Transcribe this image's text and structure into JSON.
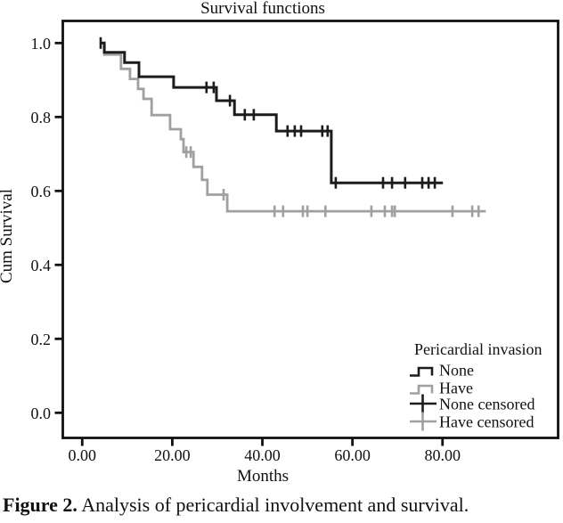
{
  "figure": {
    "caption_label": "Figure 2.",
    "caption_text": " Analysis of pericardial involvement and survival."
  },
  "chart_data": {
    "type": "line",
    "subtype": "kaplan-meier-step",
    "title": "Survival functions",
    "xlabel": "Months",
    "ylabel": "Cum Survival",
    "xlim": [
      0,
      80
    ],
    "ylim": [
      0.0,
      1.0
    ],
    "grid": false,
    "background": "#ffffff",
    "axis_color": "#111111",
    "xticks": {
      "values": [
        0,
        20,
        40,
        60,
        80
      ],
      "labels": [
        "0.00",
        "20.00",
        "40.00",
        "60.00",
        "80.00"
      ]
    },
    "yticks": {
      "values": [
        1.0,
        0.8,
        0.6,
        0.4,
        0.2,
        0.0
      ],
      "labels": [
        "1.0",
        "0.8",
        "0.6",
        "0.4",
        "0.2",
        "0.0"
      ]
    },
    "legend": {
      "title": "Pericardial invasion",
      "position": "lower right",
      "items": [
        "None",
        "Have",
        "None censored",
        "Have censored"
      ]
    },
    "series": [
      {
        "name": "Have",
        "color": "#a0a0a0",
        "steps": [
          [
            3.9,
            1.0
          ],
          [
            4.9,
            0.969
          ],
          [
            8.6,
            0.93
          ],
          [
            10.6,
            0.903
          ],
          [
            12.4,
            0.876
          ],
          [
            13.6,
            0.849
          ],
          [
            15.4,
            0.805
          ],
          [
            19.5,
            0.767
          ],
          [
            21.9,
            0.74
          ],
          [
            22.5,
            0.705
          ],
          [
            24.7,
            0.665
          ],
          [
            26.6,
            0.63
          ],
          [
            27.8,
            0.59
          ],
          [
            32.2,
            0.545
          ]
        ],
        "end_time": 89.6,
        "censored": [
          [
            23.1,
            0.705
          ],
          [
            24.1,
            0.705
          ],
          [
            31.4,
            0.59
          ],
          [
            42.7,
            0.545
          ],
          [
            44.6,
            0.545
          ],
          [
            49.0,
            0.545
          ],
          [
            50.0,
            0.545
          ],
          [
            54.0,
            0.545
          ],
          [
            64.2,
            0.545
          ],
          [
            67.2,
            0.545
          ],
          [
            68.8,
            0.545
          ],
          [
            69.4,
            0.545
          ],
          [
            82.2,
            0.545
          ],
          [
            86.6,
            0.545
          ],
          [
            88.0,
            0.545
          ]
        ]
      },
      {
        "name": "None",
        "color": "#1c1c1c",
        "steps": [
          [
            3.9,
            1.0
          ],
          [
            4.9,
            0.975
          ],
          [
            9.4,
            0.947
          ],
          [
            12.6,
            0.909
          ],
          [
            20.3,
            0.88
          ],
          [
            29.8,
            0.844
          ],
          [
            33.8,
            0.806
          ],
          [
            43.1,
            0.762
          ],
          [
            55.3,
            0.622
          ]
        ],
        "end_time": 80.1,
        "censored": [
          [
            4.1,
            1.0
          ],
          [
            27.6,
            0.88
          ],
          [
            29.2,
            0.88
          ],
          [
            32.8,
            0.844
          ],
          [
            36.1,
            0.806
          ],
          [
            38.1,
            0.806
          ],
          [
            45.6,
            0.762
          ],
          [
            47.2,
            0.762
          ],
          [
            48.6,
            0.762
          ],
          [
            53.3,
            0.762
          ],
          [
            54.5,
            0.762
          ],
          [
            56.3,
            0.622
          ],
          [
            66.8,
            0.622
          ],
          [
            68.8,
            0.622
          ],
          [
            71.7,
            0.622
          ],
          [
            75.5,
            0.622
          ],
          [
            76.9,
            0.622
          ],
          [
            78.3,
            0.622
          ]
        ]
      }
    ]
  }
}
